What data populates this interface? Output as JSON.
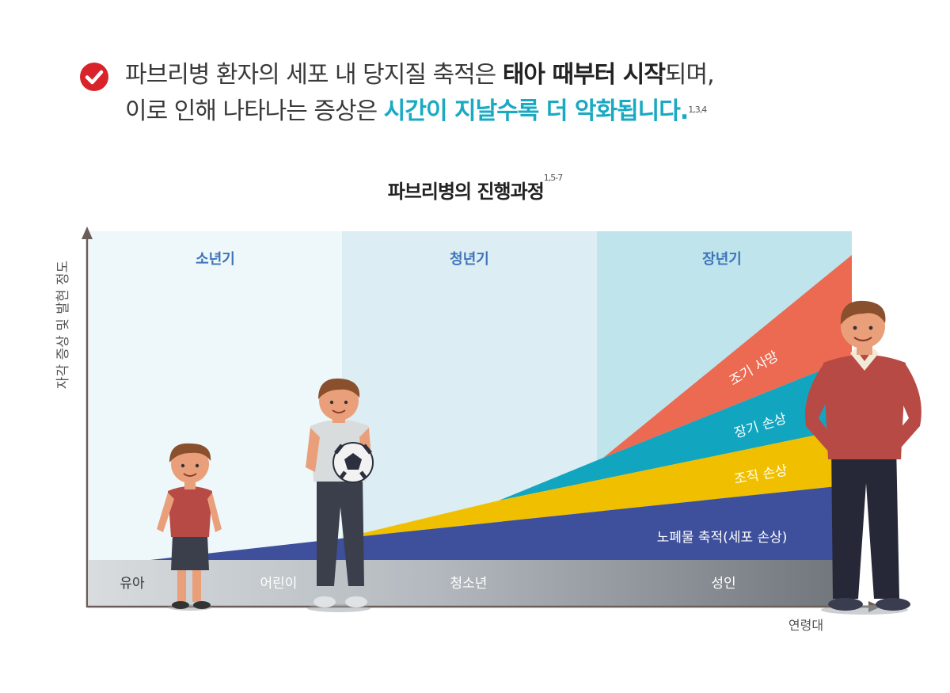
{
  "headline": {
    "line1_a": "파브리병 환자의 세포 내 당지질 축적은 ",
    "line1_b": "태아 때부터 시작",
    "line1_c": "되며,",
    "line2_a": "이로 인해 나타나는 증상은 ",
    "line2_b": "시간이 지날수록 더 악화됩니다.",
    "line2_ref": "1,3,4"
  },
  "chart_data": {
    "type": "area",
    "title": "파브리병의 진행과정",
    "title_ref": "1,5-7",
    "ylabel": "자각 증상 및 발현 정도",
    "xlabel": "연령대",
    "phases": [
      "소년기",
      "청년기",
      "장년기"
    ],
    "age_groups": [
      "유아",
      "어린이",
      "청소년",
      "성인"
    ],
    "series": [
      {
        "name": "노폐물 축적(세포 손상)",
        "color": "#3e4f9c"
      },
      {
        "name": "조직 손상",
        "color": "#f0c000"
      },
      {
        "name": "장기 손상",
        "color": "#12a5c0"
      },
      {
        "name": "조기 사망",
        "color": "#ec6a52"
      }
    ]
  },
  "icons": {
    "check": "check-circle-icon"
  }
}
